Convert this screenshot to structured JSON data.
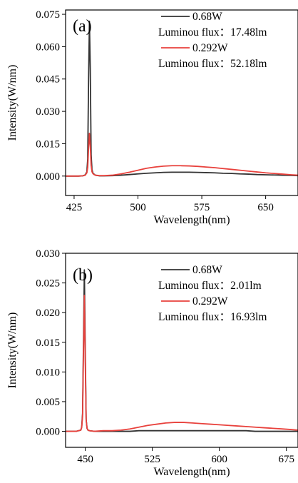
{
  "chart_data": [
    {
      "type": "line",
      "panel_label": "(a)",
      "xlabel": "Wavelength(nm)",
      "ylabel": "Intensity(W/nm)",
      "xlim": [
        415,
        688
      ],
      "ylim": [
        -0.009,
        0.077
      ],
      "xticks": [
        425,
        500,
        575,
        650
      ],
      "yticks": [
        0.0,
        0.015,
        0.03,
        0.045,
        0.06,
        0.075
      ],
      "ytick_labels": [
        "0.000",
        "0.015",
        "0.030",
        "0.045",
        "0.060",
        "0.075"
      ],
      "grid": false,
      "legend_position": "top-right",
      "series": [
        {
          "name": "0.68W",
          "color": "#333333",
          "legend_note": "Luminou flux：17.48lm",
          "x": [
            415,
            430,
            435,
            438,
            440,
            441,
            442,
            443,
            444,
            445,
            446,
            447,
            448,
            450,
            455,
            460,
            470,
            480,
            490,
            500,
            510,
            520,
            530,
            540,
            550,
            560,
            570,
            580,
            590,
            600,
            610,
            620,
            630,
            640,
            650,
            660,
            670,
            680,
            688
          ],
          "y": [
            0.0,
            0.0,
            0.0001,
            0.0005,
            0.002,
            0.008,
            0.045,
            0.0718,
            0.05,
            0.01,
            0.003,
            0.0015,
            0.001,
            0.0004,
            0.0001,
            0.0001,
            0.0002,
            0.0004,
            0.0007,
            0.001,
            0.0013,
            0.0015,
            0.0017,
            0.0018,
            0.0018,
            0.0018,
            0.0017,
            0.0016,
            0.0015,
            0.0013,
            0.0012,
            0.001,
            0.0009,
            0.0007,
            0.0006,
            0.0005,
            0.0004,
            0.0003,
            0.0002
          ]
        },
        {
          "name": "0.292W",
          "color": "#e8413c",
          "legend_note": "Luminou flux：52.18lm",
          "x": [
            415,
            430,
            435,
            438,
            440,
            441,
            442,
            443,
            444,
            445,
            446,
            447,
            448,
            450,
            455,
            460,
            470,
            480,
            490,
            500,
            510,
            520,
            530,
            540,
            550,
            560,
            570,
            580,
            590,
            600,
            610,
            620,
            630,
            640,
            650,
            660,
            670,
            680,
            688
          ],
          "y": [
            0.0,
            0.0,
            0.0001,
            0.0004,
            0.0015,
            0.004,
            0.013,
            0.0198,
            0.014,
            0.005,
            0.002,
            0.0012,
            0.0008,
            0.0004,
            0.0002,
            0.0002,
            0.0004,
            0.001,
            0.0018,
            0.0027,
            0.0036,
            0.0042,
            0.0046,
            0.0048,
            0.0048,
            0.0047,
            0.0045,
            0.0042,
            0.0039,
            0.0035,
            0.0031,
            0.0027,
            0.0023,
            0.0019,
            0.0015,
            0.0012,
            0.0009,
            0.0006,
            0.0004
          ]
        }
      ]
    },
    {
      "type": "line",
      "panel_label": "(b)",
      "xlabel": "Wavelength(nm)",
      "ylabel": "Intensity(W/nm)",
      "xlim": [
        428,
        688
      ],
      "ylim": [
        -0.0027,
        0.03
      ],
      "xticks": [
        450,
        525,
        600,
        675
      ],
      "yticks": [
        0.0,
        0.005,
        0.01,
        0.015,
        0.02,
        0.025,
        0.03
      ],
      "ytick_labels": [
        "0.000",
        "0.005",
        "0.010",
        "0.015",
        "0.020",
        "0.025",
        "0.030"
      ],
      "grid": false,
      "legend_position": "top-right",
      "series": [
        {
          "name": "0.68W",
          "color": "#333333",
          "legend_note": "Luminou flux：2.01lm",
          "x": [
            428,
            440,
            445,
            446,
            447,
            448,
            449,
            450,
            451,
            452,
            453,
            455,
            460,
            470,
            480,
            490,
            500,
            510,
            520,
            530,
            540,
            550,
            560,
            570,
            580,
            590,
            600,
            610,
            620,
            630,
            640,
            650,
            660,
            670,
            680,
            688
          ],
          "y": [
            0.0,
            0.0,
            0.0002,
            0.0007,
            0.003,
            0.015,
            0.0272,
            0.014,
            0.002,
            0.0005,
            0.0002,
            0.0001,
            0.0,
            0.0,
            0.0,
            0.0,
            0.0,
            0.0001,
            0.0001,
            0.0001,
            0.0001,
            0.0001,
            0.0001,
            0.0001,
            0.0001,
            0.0001,
            0.0001,
            0.0001,
            0.0001,
            0.0001,
            0.0,
            0.0,
            0.0,
            0.0,
            0.0,
            0.0
          ]
        },
        {
          "name": "0.292W",
          "color": "#e8413c",
          "legend_note": "Luminou flux：16.93lm",
          "x": [
            428,
            440,
            445,
            446,
            447,
            448,
            449,
            450,
            451,
            452,
            453,
            455,
            460,
            470,
            480,
            490,
            500,
            510,
            520,
            530,
            540,
            550,
            560,
            570,
            580,
            590,
            600,
            610,
            620,
            630,
            640,
            650,
            660,
            670,
            680,
            688
          ],
          "y": [
            0.0,
            0.0,
            0.0002,
            0.0006,
            0.0025,
            0.013,
            0.0229,
            0.012,
            0.002,
            0.0005,
            0.0002,
            0.0001,
            0.0,
            0.0001,
            0.0001,
            0.0002,
            0.0004,
            0.0007,
            0.001,
            0.0012,
            0.0014,
            0.0015,
            0.0015,
            0.0014,
            0.0013,
            0.0012,
            0.0011,
            0.001,
            0.0009,
            0.0008,
            0.0007,
            0.0006,
            0.0005,
            0.0004,
            0.0003,
            0.0002
          ]
        }
      ]
    }
  ]
}
